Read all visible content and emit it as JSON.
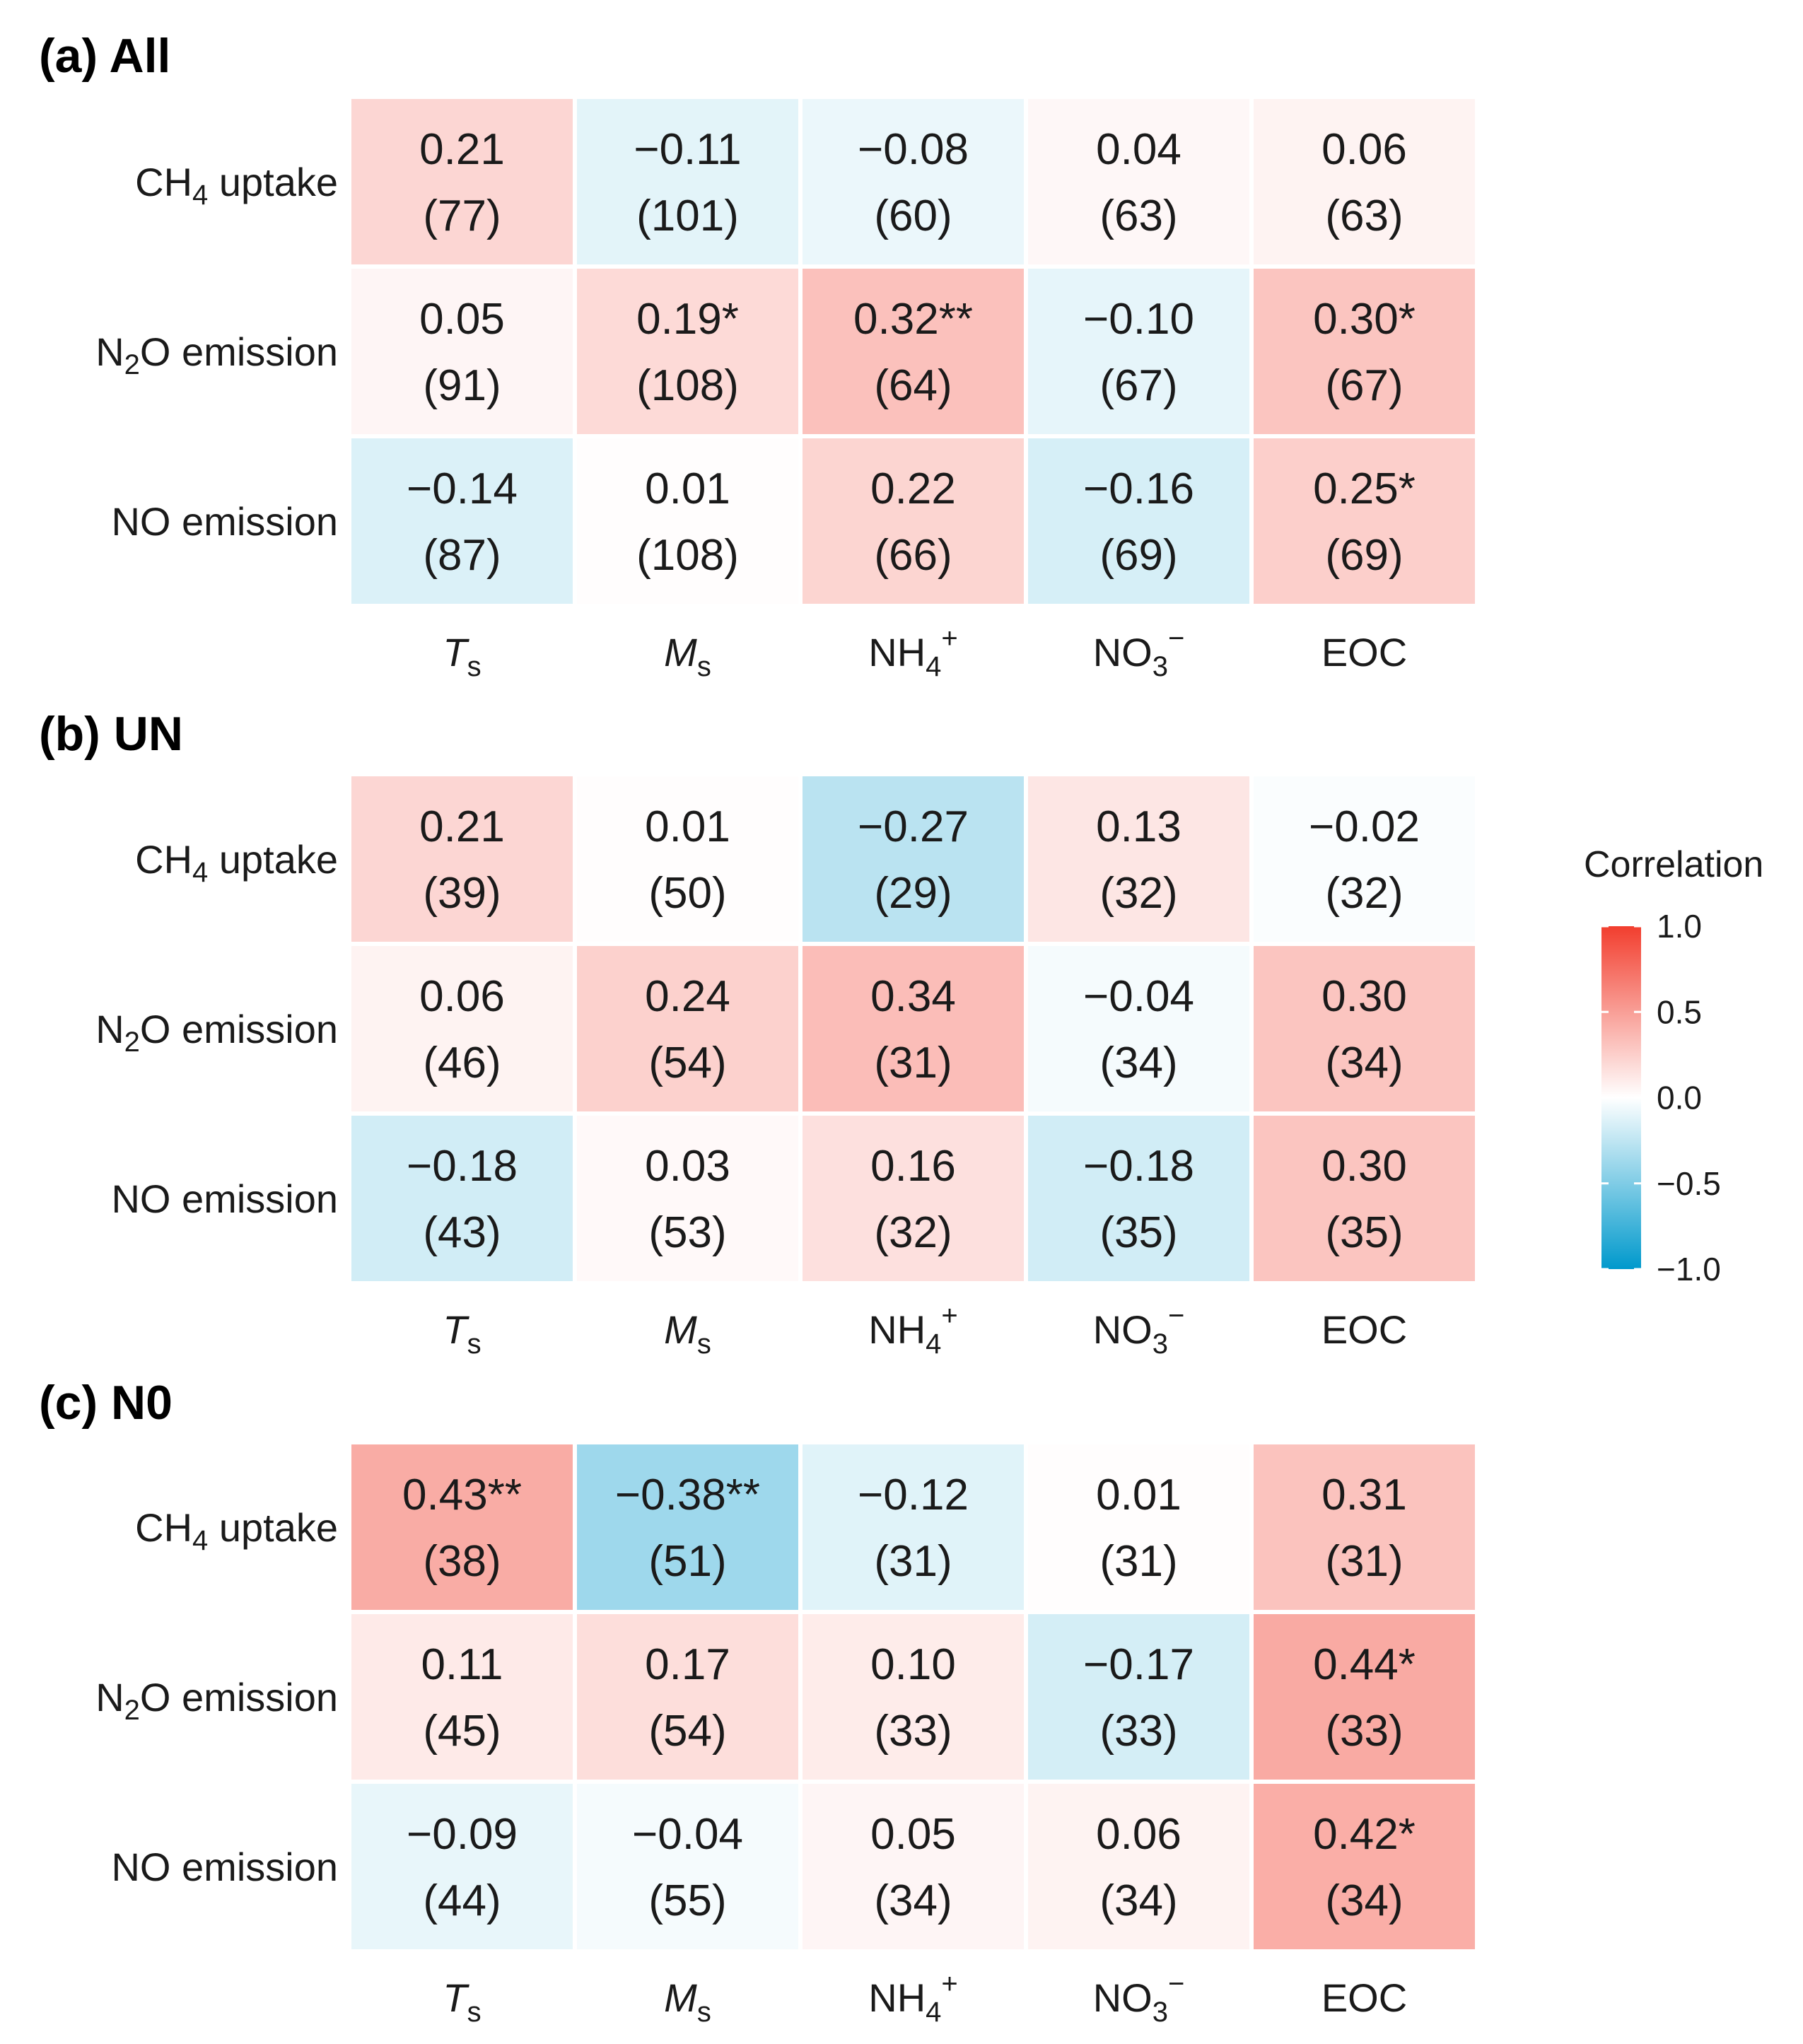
{
  "chart_data": [
    {
      "type": "heatmap",
      "title": "(a) All",
      "rows": [
        "CH4 uptake",
        "N2O emission",
        "NO emission"
      ],
      "columns": [
        "Ts",
        "Ms",
        "NH4+",
        "NO3−",
        "EOC"
      ],
      "values": [
        [
          0.21,
          -0.11,
          -0.08,
          0.04,
          0.06
        ],
        [
          0.05,
          0.19,
          0.32,
          -0.1,
          0.3
        ],
        [
          -0.14,
          0.01,
          0.22,
          -0.16,
          0.25
        ]
      ],
      "labels": [
        [
          "0.21",
          "−0.11",
          "−0.08",
          "0.04",
          "0.06"
        ],
        [
          "0.05",
          "0.19*",
          "0.32**",
          "−0.10",
          "0.30*"
        ],
        [
          "−0.14",
          "0.01",
          "0.22",
          "−0.16",
          "0.25*"
        ]
      ],
      "n": [
        [
          "(77)",
          "(101)",
          "(60)",
          "(63)",
          "(63)"
        ],
        [
          "(91)",
          "(108)",
          "(64)",
          "(67)",
          "(67)"
        ],
        [
          "(87)",
          "(108)",
          "(66)",
          "(69)",
          "(69)"
        ]
      ]
    },
    {
      "type": "heatmap",
      "title": "(b) UN",
      "rows": [
        "CH4 uptake",
        "N2O emission",
        "NO emission"
      ],
      "columns": [
        "Ts",
        "Ms",
        "NH4+",
        "NO3−",
        "EOC"
      ],
      "values": [
        [
          0.21,
          0.01,
          -0.27,
          0.13,
          -0.02
        ],
        [
          0.06,
          0.24,
          0.34,
          -0.04,
          0.3
        ],
        [
          -0.18,
          0.03,
          0.16,
          -0.18,
          0.3
        ]
      ],
      "labels": [
        [
          "0.21",
          "0.01",
          "−0.27",
          "0.13",
          "−0.02"
        ],
        [
          "0.06",
          "0.24",
          "0.34",
          "−0.04",
          "0.30"
        ],
        [
          "−0.18",
          "0.03",
          "0.16",
          "−0.18",
          "0.30"
        ]
      ],
      "n": [
        [
          "(39)",
          "(50)",
          "(29)",
          "(32)",
          "(32)"
        ],
        [
          "(46)",
          "(54)",
          "(31)",
          "(34)",
          "(34)"
        ],
        [
          "(43)",
          "(53)",
          "(32)",
          "(35)",
          "(35)"
        ]
      ]
    },
    {
      "type": "heatmap",
      "title": "(c) N0",
      "rows": [
        "CH4 uptake",
        "N2O emission",
        "NO emission"
      ],
      "columns": [
        "Ts",
        "Ms",
        "NH4+",
        "NO3−",
        "EOC"
      ],
      "values": [
        [
          0.43,
          -0.38,
          -0.12,
          0.01,
          0.31
        ],
        [
          0.11,
          0.17,
          0.1,
          -0.17,
          0.44
        ],
        [
          -0.09,
          -0.04,
          0.05,
          0.06,
          0.42
        ]
      ],
      "labels": [
        [
          "0.43**",
          "−0.38**",
          "−0.12",
          "0.01",
          "0.31"
        ],
        [
          "0.11",
          "0.17",
          "0.10",
          "−0.17",
          "0.44*"
        ],
        [
          "−0.09",
          "−0.04",
          "0.05",
          "0.06",
          "0.42*"
        ]
      ],
      "n": [
        [
          "(38)",
          "(51)",
          "(31)",
          "(31)",
          "(31)"
        ],
        [
          "(45)",
          "(54)",
          "(33)",
          "(33)",
          "(33)"
        ],
        [
          "(44)",
          "(55)",
          "(34)",
          "(34)",
          "(34)"
        ]
      ]
    }
  ],
  "legend": {
    "title": "Correlation",
    "range": [
      -1.0,
      1.0
    ],
    "ticks": [
      "1.0",
      "0.5",
      "0.0",
      "−0.5",
      "−1.0"
    ],
    "tick_values": [
      1.0,
      0.5,
      0.0,
      -0.5,
      -1.0
    ],
    "colors": {
      "low": "#0099cc",
      "mid": "#ffffff",
      "high": "#f23e2e"
    }
  },
  "row_label_parts": [
    {
      "main": "CH",
      "sub": "4",
      "rest": " uptake"
    },
    {
      "main": "N",
      "sub": "2",
      "rest": "O emission"
    },
    {
      "main": "NO emission",
      "sub": "",
      "rest": ""
    }
  ],
  "col_label_parts": [
    {
      "main": "T",
      "sub": "s",
      "sup": "",
      "italic": true
    },
    {
      "main": "M",
      "sub": "s",
      "sup": "",
      "italic": true
    },
    {
      "main": "NH",
      "sub": "4",
      "sup": "+",
      "italic": false
    },
    {
      "main": "NO",
      "sub": "3",
      "sup": "−",
      "italic": false
    },
    {
      "main": "EOC",
      "sub": "",
      "sup": "",
      "italic": false
    }
  ]
}
